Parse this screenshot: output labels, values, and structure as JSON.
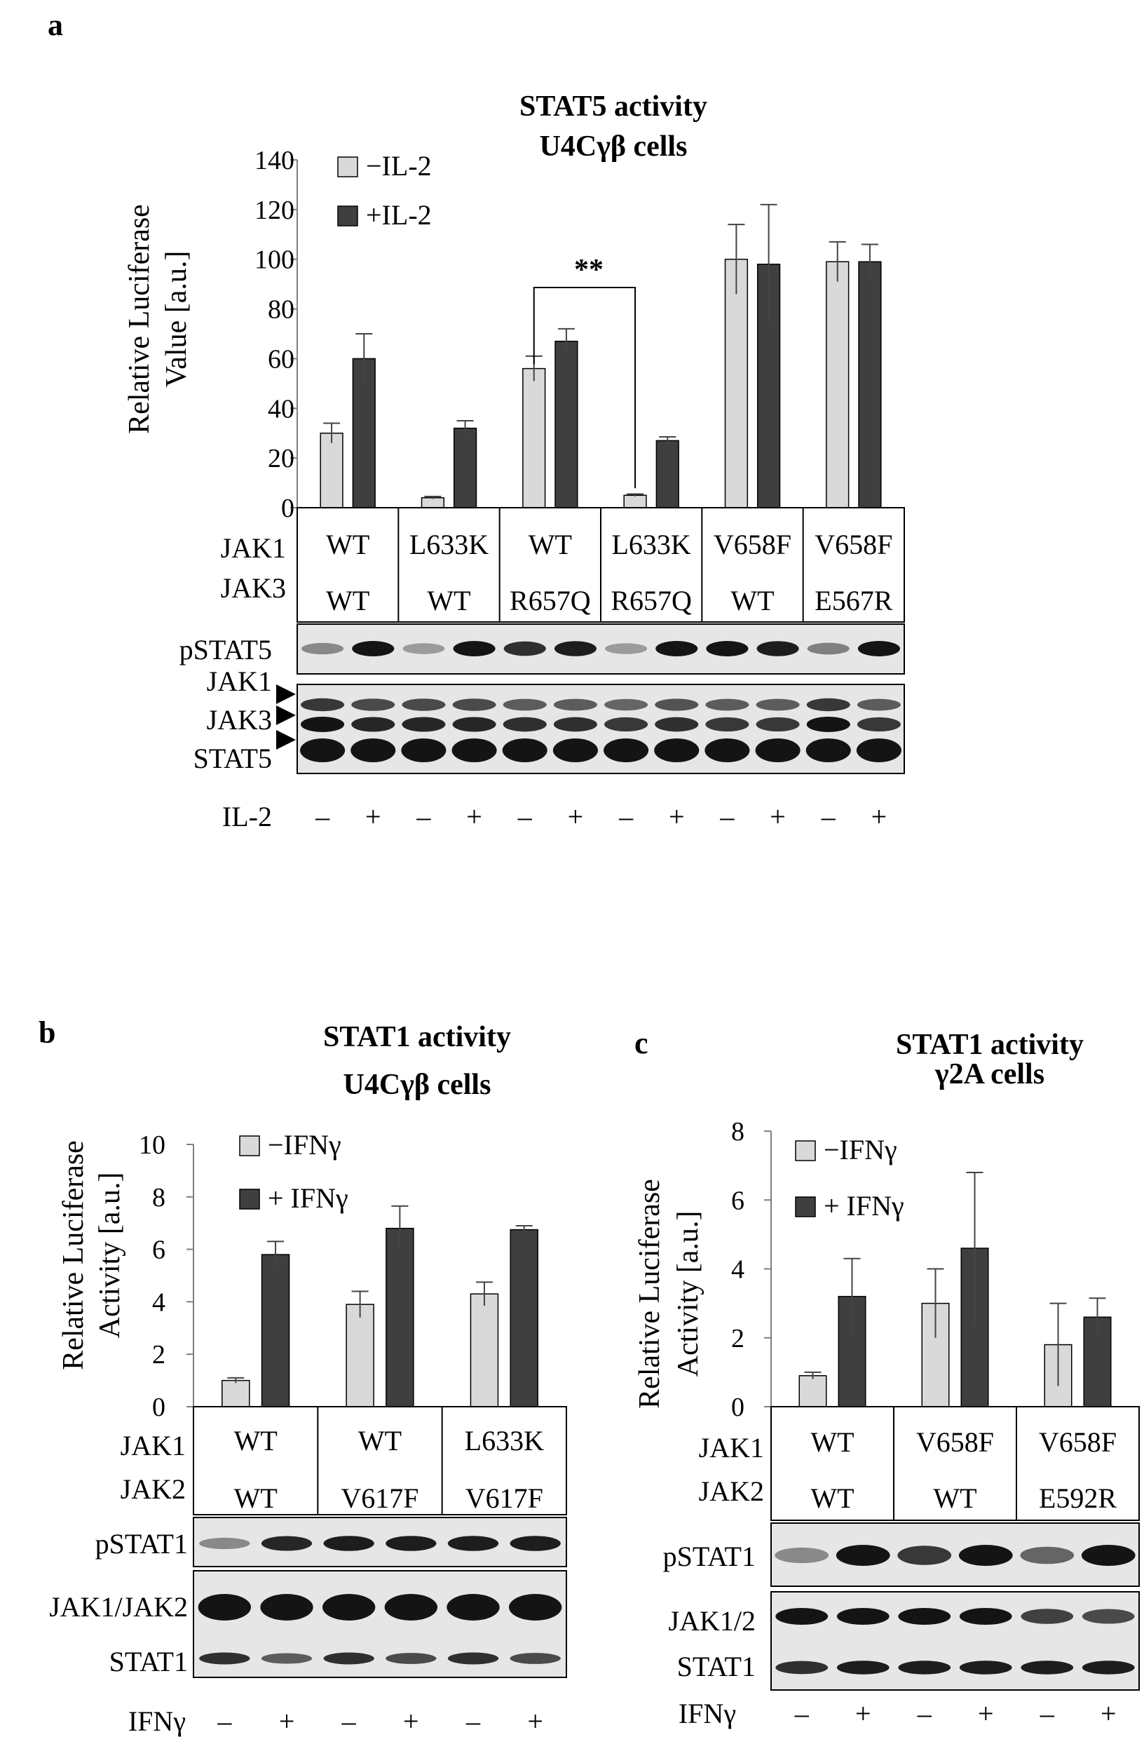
{
  "colors": {
    "light": "#d9d9d9",
    "dark": "#3f3f3f",
    "stroke": "#000000",
    "axis": "#7f7f7f",
    "blot_bg": "#e6e6e6",
    "band": "#141414"
  },
  "chart_data": [
    {
      "panel": "a",
      "type": "bar",
      "title": [
        "STAT5 activity",
        "U4Cγβ cells"
      ],
      "ylabel": [
        "Relative Luciferase",
        "Value [a.u.]"
      ],
      "ylim": [
        0,
        140
      ],
      "yticks": [
        "0",
        "20",
        "40",
        "60",
        "80",
        "100",
        "120",
        "140"
      ],
      "series": [
        {
          "name": "−IL-2",
          "values": [
            30,
            4,
            56,
            5,
            100,
            99
          ],
          "errors": [
            4,
            0.5,
            5,
            0.5,
            14,
            8
          ]
        },
        {
          "name": "+IL-2",
          "values": [
            60,
            32,
            67,
            27,
            98,
            99
          ],
          "errors": [
            10,
            3,
            5,
            1.5,
            24,
            7
          ]
        }
      ],
      "significance": {
        "label": "**",
        "between": [
          "WT/R657Q −IL-2",
          "L633K/R657Q −IL-2"
        ]
      },
      "row_labels": [
        "JAK1",
        "JAK3"
      ],
      "groups": [
        {
          "jak_a": "WT",
          "jak_b": "WT"
        },
        {
          "jak_a": "L633K",
          "jak_b": "WT"
        },
        {
          "jak_a": "WT",
          "jak_b": "R657Q"
        },
        {
          "jak_a": "L633K",
          "jak_b": "R657Q"
        },
        {
          "jak_a": "V658F",
          "jak_b": "WT"
        },
        {
          "jak_a": "V658F",
          "jak_b": "E567R"
        }
      ],
      "blot_labels": [
        "pSTAT5",
        "JAK1",
        "JAK3",
        "STAT5"
      ],
      "treatment_label": "IL-2",
      "treatment_signs": [
        "–",
        "+",
        "–",
        "+",
        "–",
        "+",
        "–",
        "+",
        "–",
        "+",
        "–",
        "+"
      ]
    },
    {
      "panel": "b",
      "type": "bar",
      "title": [
        "STAT1 activity",
        "U4Cγβ cells"
      ],
      "ylabel": [
        "Relative Luciferase",
        "Activity [a.u.]"
      ],
      "ylim": [
        0,
        10
      ],
      "yticks": [
        "0",
        "2",
        "4",
        "6",
        "8",
        "10"
      ],
      "series": [
        {
          "name": "−IFNγ",
          "values": [
            1.0,
            3.9,
            4.3
          ],
          "errors": [
            0.1,
            0.5,
            0.45
          ]
        },
        {
          "name": "+ IFNγ",
          "values": [
            5.8,
            6.8,
            6.75
          ],
          "errors": [
            0.5,
            0.85,
            0.15
          ]
        }
      ],
      "row_labels": [
        "JAK1",
        "JAK2"
      ],
      "groups": [
        {
          "jak_a": "WT",
          "jak_b": "WT"
        },
        {
          "jak_a": "WT",
          "jak_b": "V617F"
        },
        {
          "jak_a": "L633K",
          "jak_b": "V617F"
        }
      ],
      "blot_labels": [
        "pSTAT1",
        "JAK1/JAK2",
        "STAT1"
      ],
      "treatment_label": "IFNγ",
      "treatment_signs": [
        "–",
        "+",
        "–",
        "+",
        "–",
        "+"
      ]
    },
    {
      "panel": "c",
      "type": "bar",
      "title": [
        "STAT1 activity",
        "γ2A cells"
      ],
      "ylabel": [
        "Relative Luciferase",
        "Activity [a.u.]"
      ],
      "ylim": [
        0,
        8
      ],
      "yticks": [
        "0",
        "2",
        "4",
        "6",
        "8"
      ],
      "series": [
        {
          "name": "−IFNγ",
          "values": [
            0.9,
            3.0,
            1.8
          ],
          "errors": [
            0.1,
            1.0,
            1.2
          ]
        },
        {
          "name": "+ IFNγ",
          "values": [
            3.2,
            4.6,
            2.6
          ],
          "errors": [
            1.1,
            2.2,
            0.55
          ]
        }
      ],
      "row_labels": [
        "JAK1",
        "JAK2"
      ],
      "groups": [
        {
          "jak_a": "WT",
          "jak_b": "WT"
        },
        {
          "jak_a": "V658F",
          "jak_b": "WT"
        },
        {
          "jak_a": "V658F",
          "jak_b": "E592R"
        }
      ],
      "blot_labels": [
        "pSTAT1",
        "JAK1/2",
        "STAT1"
      ],
      "treatment_label": "IFNγ",
      "treatment_signs": [
        "–",
        "+",
        "–",
        "+",
        "–",
        "+"
      ]
    }
  ]
}
